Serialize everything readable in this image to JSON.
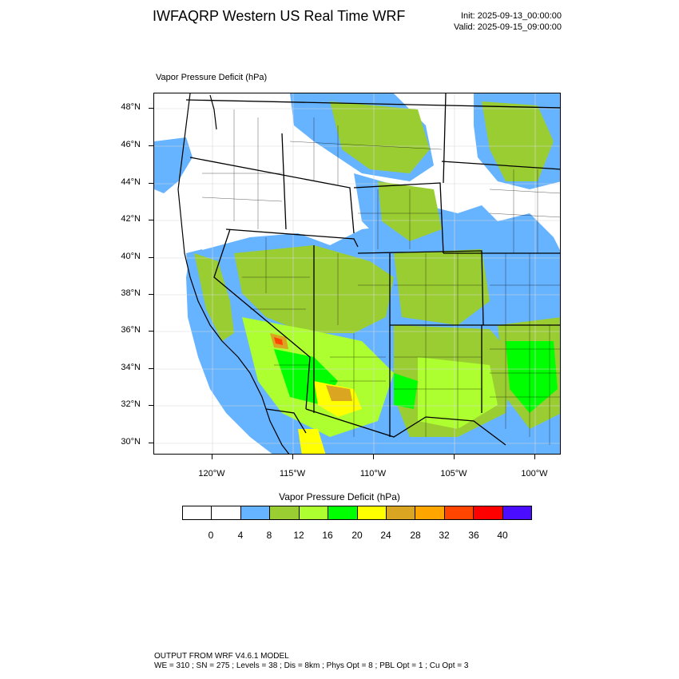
{
  "header": {
    "title": "IWFAQRP Western US Real Time WRF",
    "init": "Init: 2025-09-13_00:00:00",
    "valid": "Valid: 2025-09-15_09:00:00"
  },
  "map": {
    "field_label": "Vapor Pressure Deficit   (hPa)",
    "lat_labels": [
      "48°N",
      "46°N",
      "44°N",
      "42°N",
      "40°N",
      "38°N",
      "36°N",
      "34°N",
      "32°N",
      "30°N"
    ],
    "lon_labels": [
      "120°W",
      "115°W",
      "110°W",
      "105°W",
      "100°W"
    ]
  },
  "colorbar": {
    "title": "Vapor Pressure Deficit  (hPa)",
    "colors": [
      "#ffffff",
      "#ffffff",
      "#66b3ff",
      "#9acd32",
      "#adff2f",
      "#00ff00",
      "#ffff00",
      "#daa520",
      "#ffa500",
      "#ff4500",
      "#ff0000",
      "#4b0dff"
    ],
    "labels": [
      "0",
      "4",
      "8",
      "12",
      "16",
      "20",
      "24",
      "28",
      "32",
      "36",
      "40"
    ]
  },
  "footer": {
    "line1": "OUTPUT FROM WRF V4.6.1 MODEL",
    "line2": "WE = 310 ; SN = 275 ; Levels = 38 ; Dis = 8km ; Phys Opt = 8 ; PBL Opt = 1 ; Cu Opt = 3"
  }
}
